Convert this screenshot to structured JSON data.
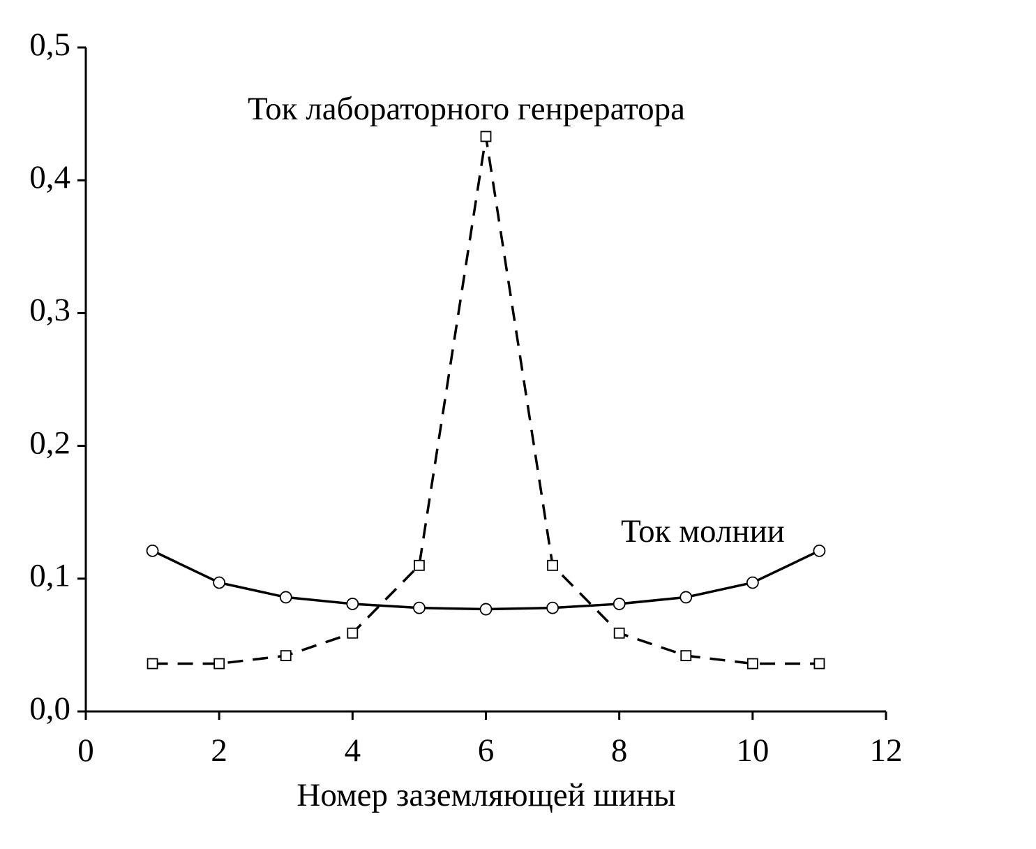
{
  "chart_data": {
    "type": "line",
    "x_label": "Номер заземляющей шины",
    "annotations": [
      "Ток лабораторного генрератора",
      "Ток молнии"
    ],
    "series": [
      {
        "name": "Ток молнии",
        "color": "#000000",
        "dash": "solid",
        "marker": "circle",
        "x": [
          1,
          2,
          3,
          4,
          5,
          6,
          7,
          8,
          9,
          10,
          11
        ],
        "values": [
          0.121,
          0.097,
          0.086,
          0.081,
          0.078,
          0.077,
          0.078,
          0.081,
          0.086,
          0.097,
          0.121
        ]
      },
      {
        "name": "Ток лабораторного генрератора",
        "color": "#000000",
        "dash": "dashed",
        "marker": "square",
        "x": [
          1,
          2,
          3,
          4,
          5,
          6,
          7,
          8,
          9,
          10,
          11
        ],
        "values": [
          0.036,
          0.036,
          0.042,
          0.059,
          0.11,
          0.433,
          0.11,
          0.059,
          0.042,
          0.036,
          0.036
        ]
      }
    ],
    "xlim": [
      0,
      12
    ],
    "xticks": [
      0,
      2,
      4,
      6,
      8,
      10,
      12
    ],
    "ylim": [
      0,
      0.5
    ],
    "yticks": [
      {
        "value": 0,
        "label": "0,0"
      },
      {
        "value": 0.1,
        "label": "0,1"
      },
      {
        "value": 0.2,
        "label": "0,2"
      },
      {
        "value": 0.3,
        "label": "0,3"
      },
      {
        "value": 0.4,
        "label": "0,4"
      },
      {
        "value": 0.5,
        "label": "0,5"
      }
    ],
    "grid": false
  }
}
